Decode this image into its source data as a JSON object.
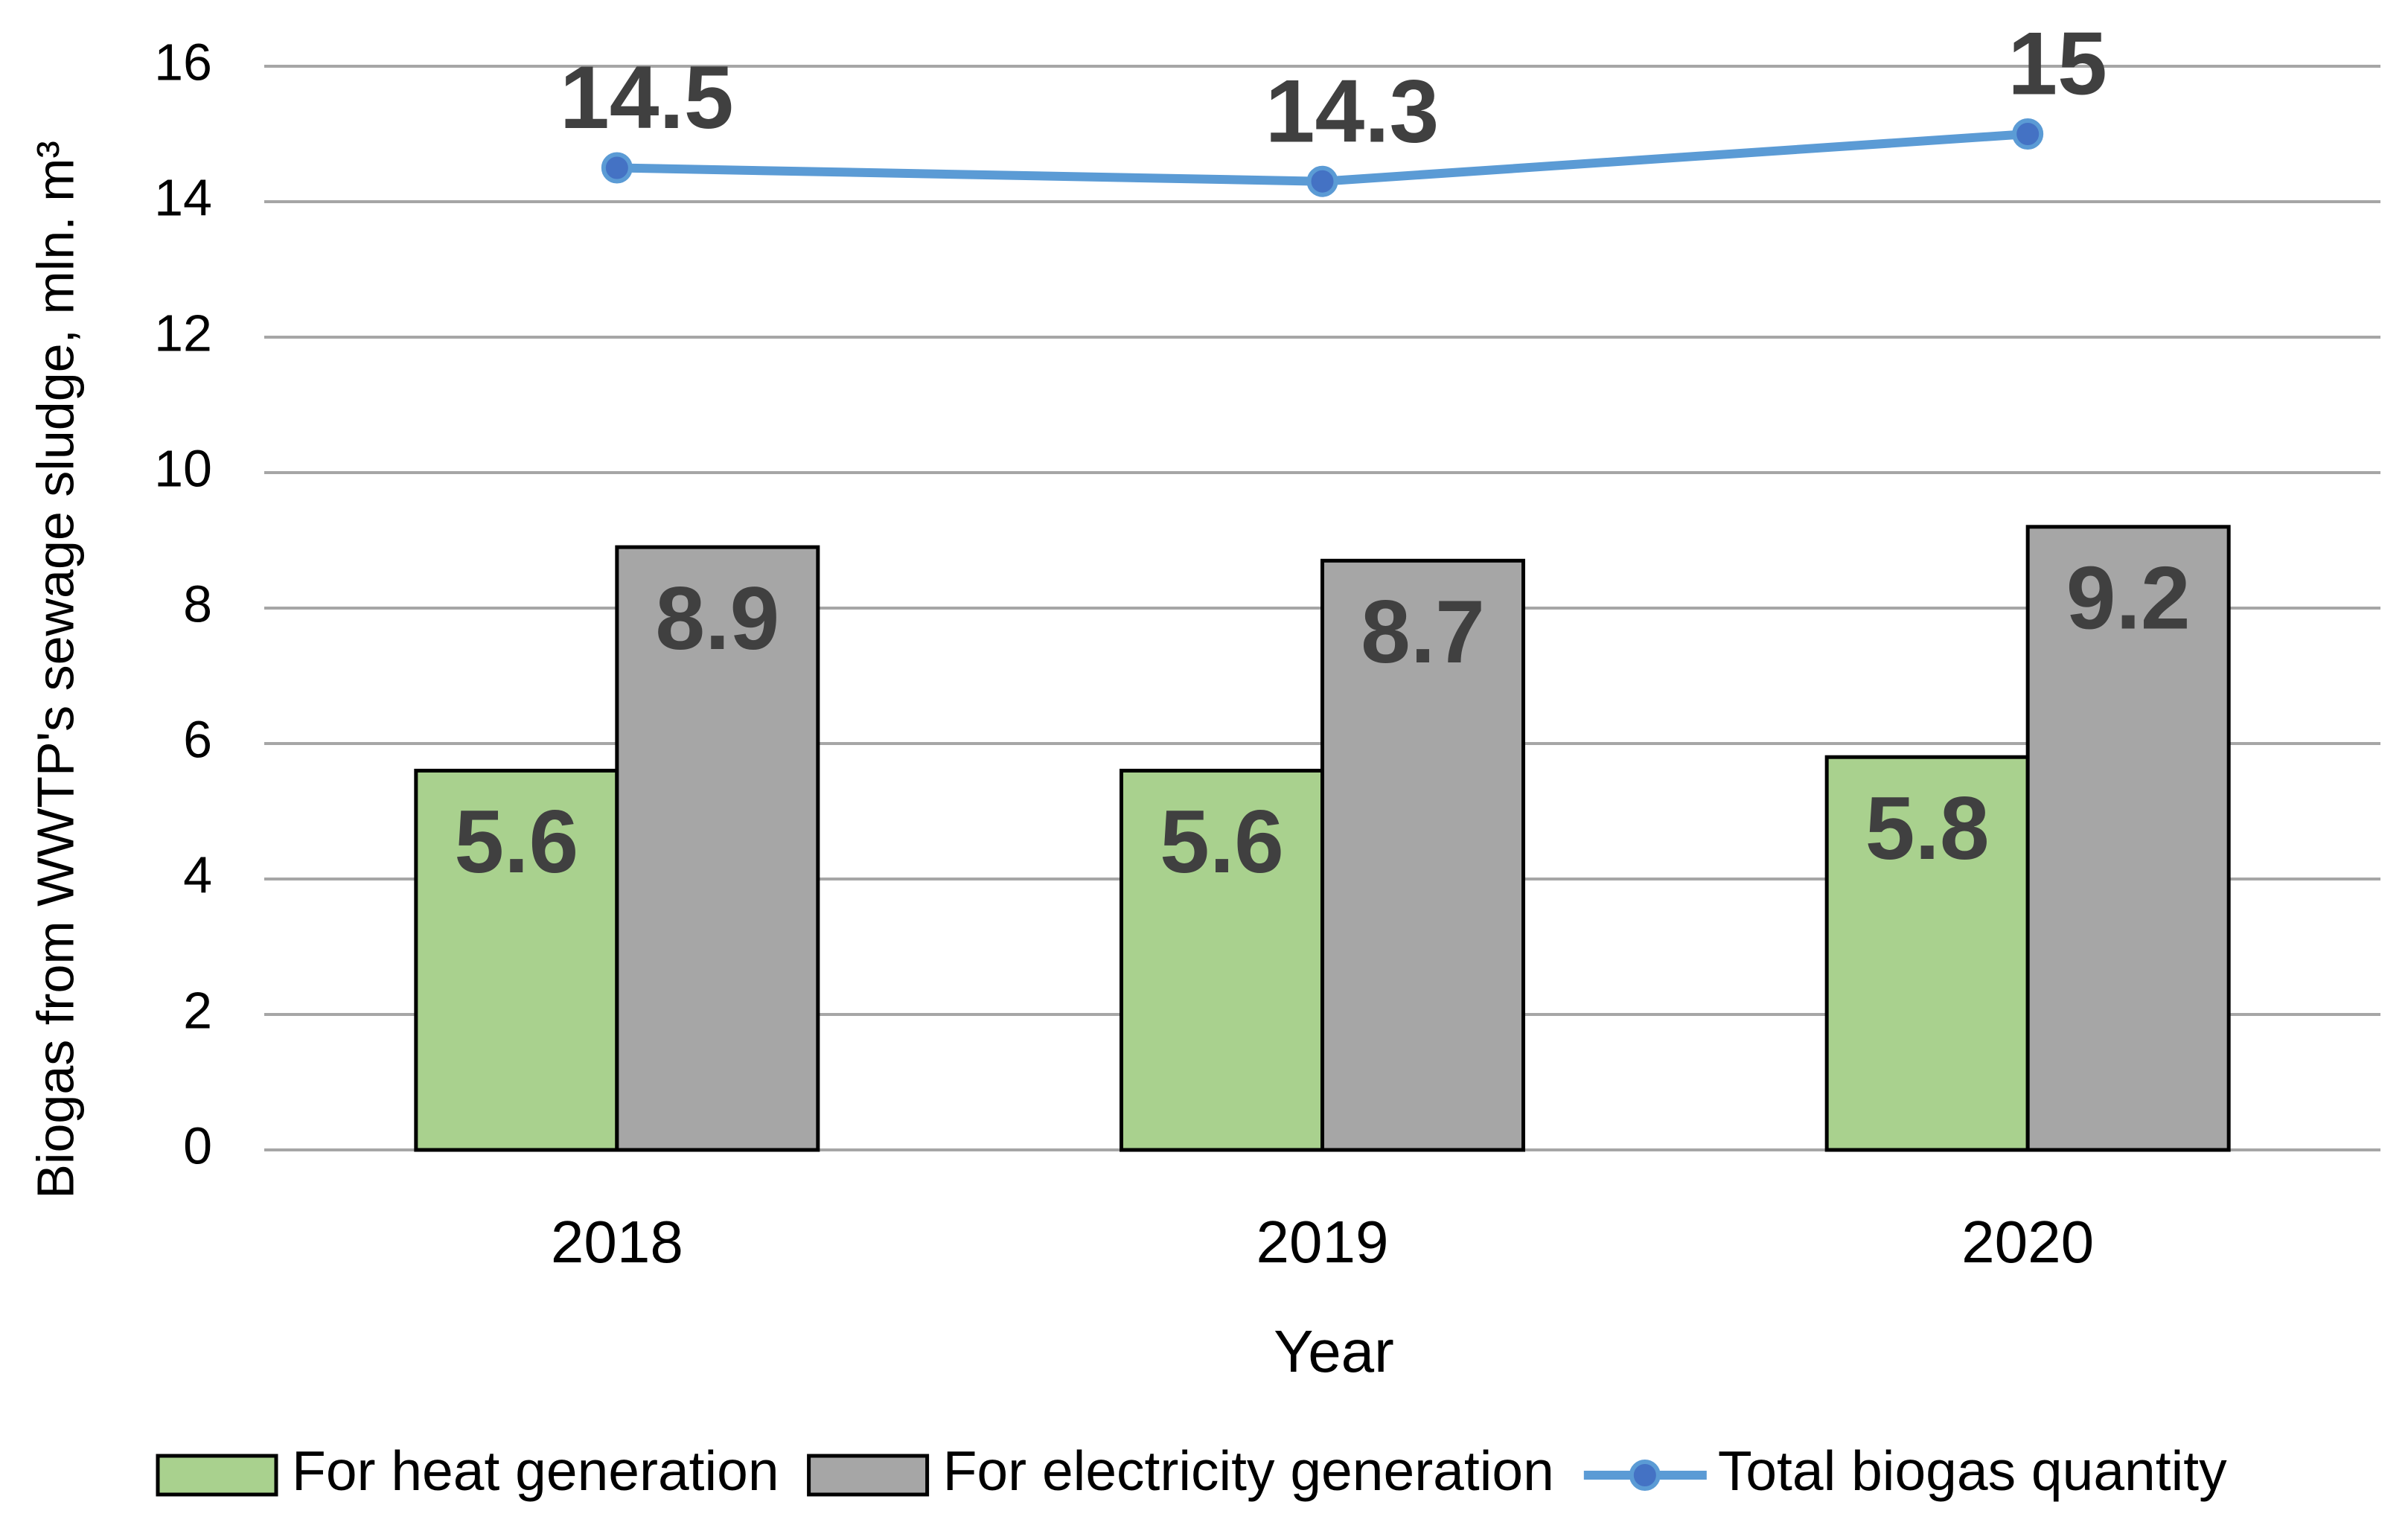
{
  "chart_data": {
    "type": "bar",
    "xlabel": "Year",
    "ylabel": "Biogas from WWTP's sewage sludge, mln. m³",
    "categories": [
      "2018",
      "2019",
      "2020"
    ],
    "series": [
      {
        "name": "For heat generation",
        "type": "bar",
        "color": "#a9d18e",
        "values": [
          5.6,
          5.6,
          5.8
        ]
      },
      {
        "name": "For electricity generation",
        "type": "bar",
        "color": "#a6a6a6",
        "values": [
          8.9,
          8.7,
          9.2
        ]
      },
      {
        "name": "Total biogas quantity",
        "type": "line",
        "color": "#5b9bd5",
        "marker_color": "#4472c4",
        "values": [
          14.5,
          14.3,
          15
        ]
      }
    ],
    "ylim": [
      0,
      16
    ],
    "yticks": [
      0,
      2,
      4,
      6,
      8,
      10,
      12,
      14,
      16
    ],
    "grid": true
  }
}
